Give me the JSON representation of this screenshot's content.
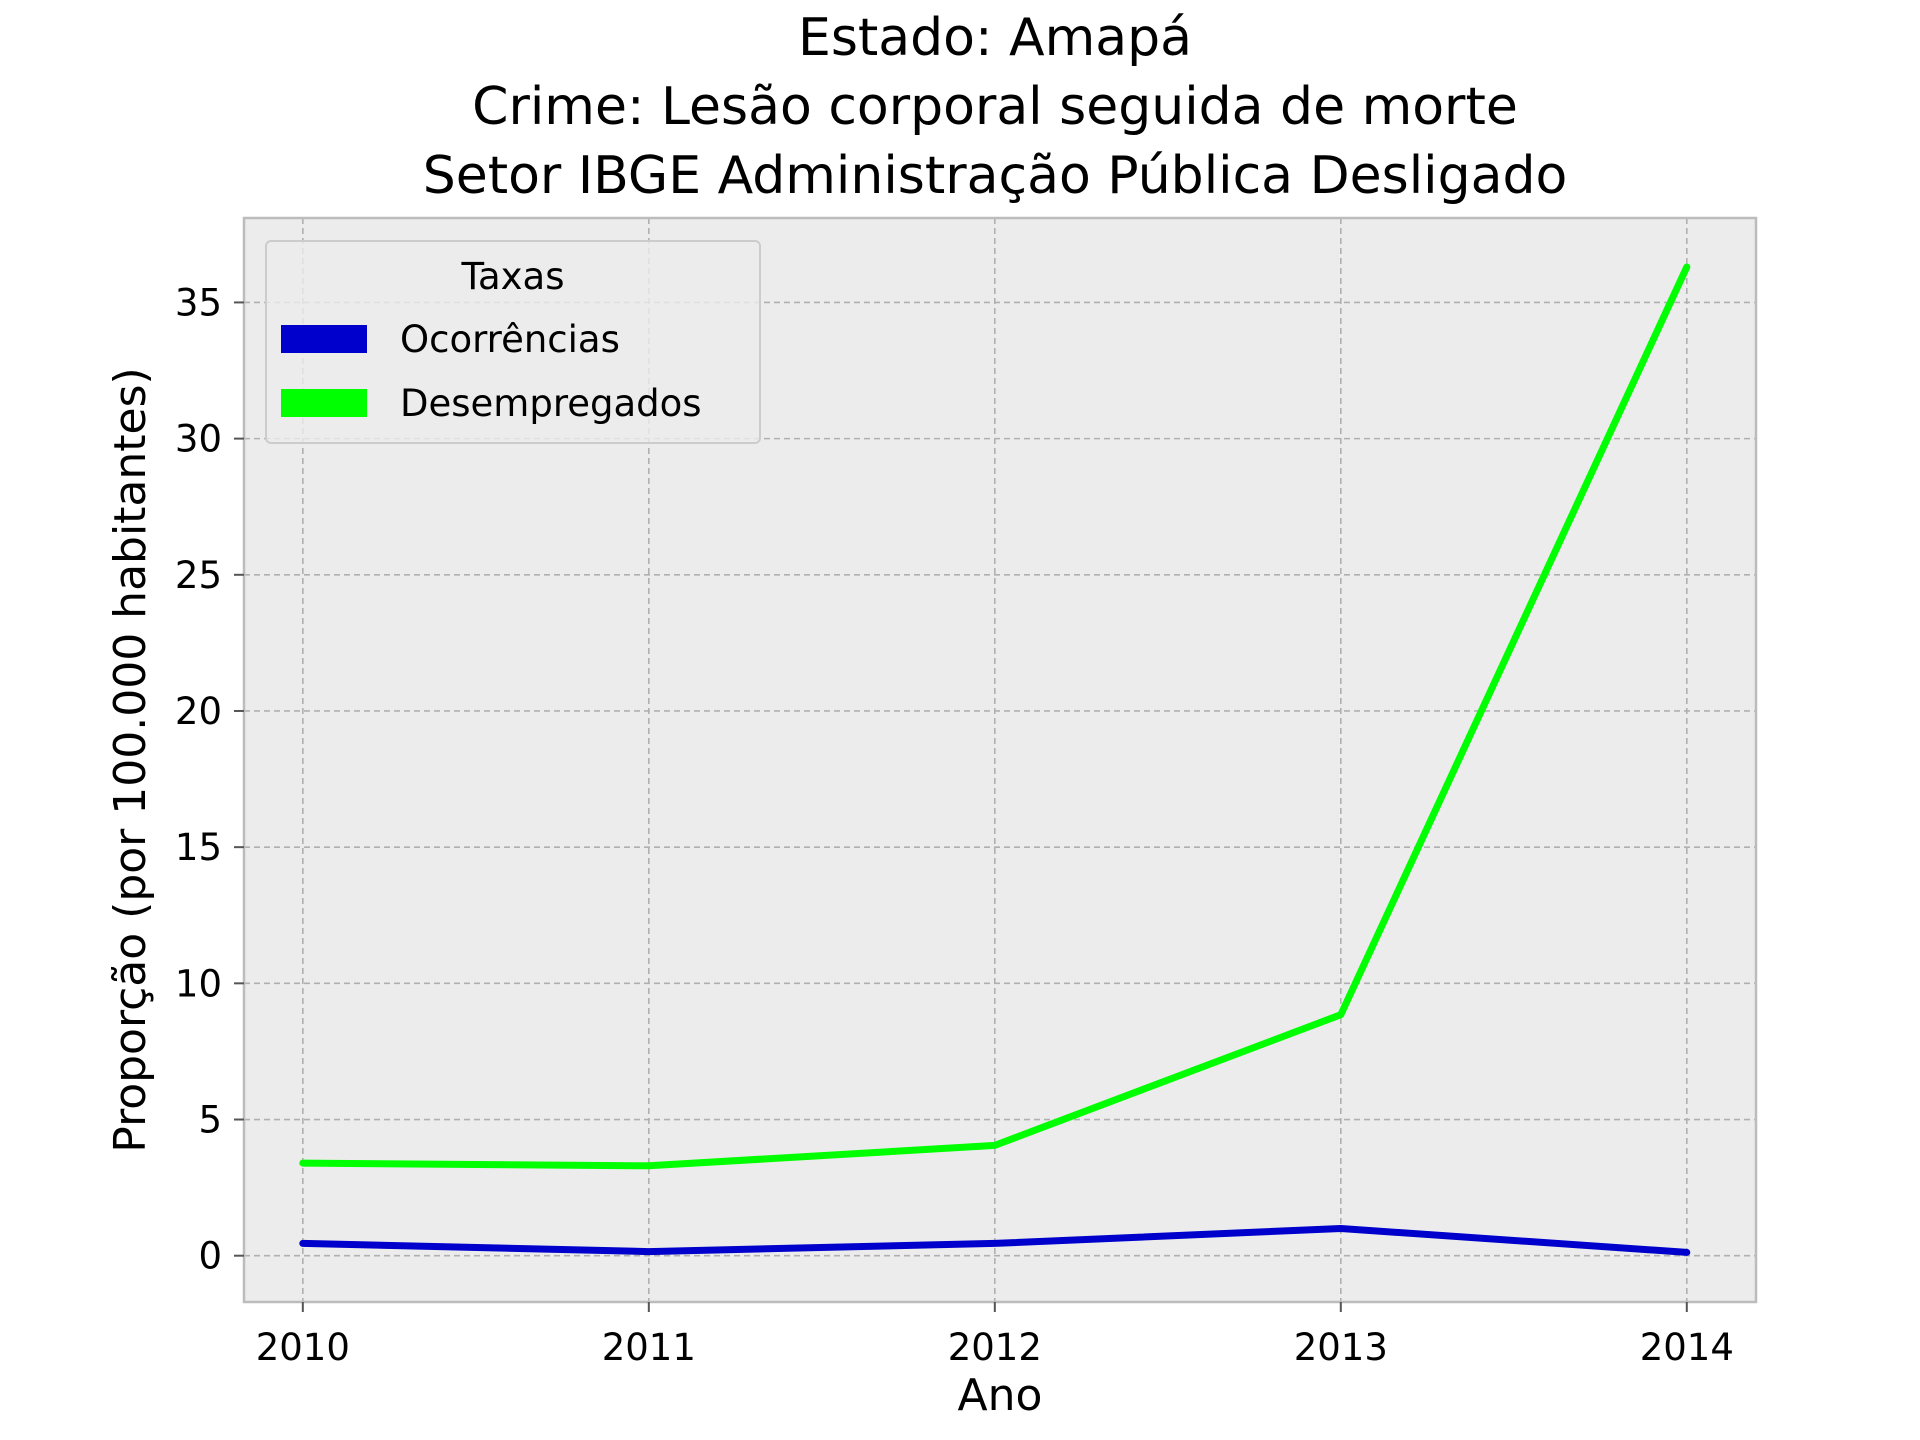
{
  "chart_data": {
    "type": "line",
    "title_lines": [
      "Estado: Amapá",
      "Crime: Lesão corporal seguida de morte",
      "Setor IBGE  Administração Pública   Desligado"
    ],
    "xlabel": "Ano",
    "ylabel": "Proporção (por 100.000 habitantes)",
    "categories": [
      "2010",
      "2011",
      "2012",
      "2013",
      "2014"
    ],
    "x": [
      2010,
      2011,
      2012,
      2013,
      2014
    ],
    "yticks": [
      0,
      5,
      10,
      15,
      20,
      25,
      30,
      35
    ],
    "ytick_labels": [
      "0",
      "5",
      "10",
      "15",
      "20",
      "25",
      "30",
      "35"
    ],
    "ylim": [
      -1.7,
      38.1
    ],
    "xlim": [
      2009.83,
      2014.2
    ],
    "grid": true,
    "legend": {
      "title": "Taxas",
      "placement": "upper-left"
    },
    "series": [
      {
        "name": "Ocorrências",
        "color": "#0000cc",
        "values": [
          0.45,
          0.15,
          0.45,
          1.0,
          0.12
        ]
      },
      {
        "name": "Desempregados",
        "color": "#00ff00",
        "values": [
          3.4,
          3.3,
          4.05,
          8.85,
          36.3
        ]
      }
    ],
    "colors": {
      "plot_background": "#ececec",
      "grid": "#b0b0b0",
      "frame": "#bcbcbc"
    }
  }
}
